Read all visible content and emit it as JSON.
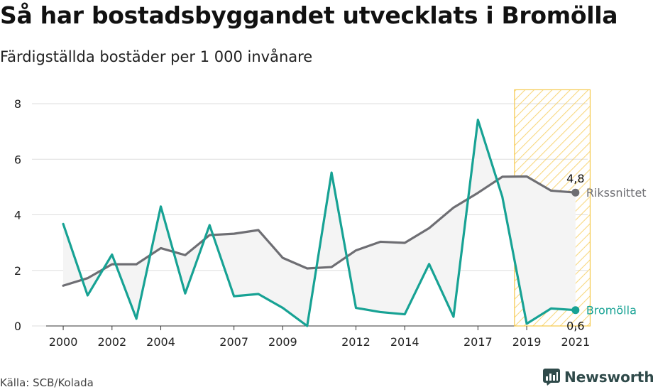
{
  "title": "Så har bostadsbyggandet utvecklats i Bromölla",
  "subtitle": "Färdigställda bostäder per 1 000 invånare",
  "source": "Källa: SCB/Kolada",
  "brand": {
    "name": "Newsworthy",
    "icon": "newsworthy-chart-icon"
  },
  "colors": {
    "local": "#17a294",
    "national": "#6e6e73",
    "highlight": "#f5c84a",
    "band": "#f4f4f4",
    "grid": "#dddddd"
  },
  "chart_data": {
    "type": "line",
    "title": "Så har bostadsbyggandet utvecklats i Bromölla",
    "ylabel": "Färdigställda bostäder per 1 000 invånare",
    "ylim": [
      0,
      8
    ],
    "yticks": [
      0,
      2,
      4,
      6,
      8
    ],
    "xlim": [
      1999.3,
      2021.5
    ],
    "xticks": [
      2000,
      2002,
      2004,
      2007,
      2009,
      2012,
      2014,
      2017,
      2019,
      2021
    ],
    "x": [
      2000,
      2001,
      2002,
      2003,
      2004,
      2005,
      2006,
      2007,
      2008,
      2009,
      2010,
      2011,
      2012,
      2013,
      2014,
      2015,
      2016,
      2017,
      2018,
      2019,
      2020,
      2021
    ],
    "highlight_range": [
      2018.5,
      2021
    ],
    "grid": true,
    "series": [
      {
        "name": "Rikssnittet",
        "values": [
          1.45,
          1.72,
          2.22,
          2.22,
          2.8,
          2.55,
          3.27,
          3.32,
          3.45,
          2.45,
          2.07,
          2.12,
          2.72,
          3.03,
          2.99,
          3.52,
          4.26,
          4.79,
          5.37,
          5.38,
          4.87,
          4.8
        ],
        "end_label": "4,8"
      },
      {
        "name": "Bromölla",
        "values": [
          3.67,
          1.1,
          2.57,
          0.26,
          4.3,
          1.17,
          3.63,
          1.07,
          1.15,
          0.65,
          0.0,
          5.52,
          0.65,
          0.5,
          0.42,
          2.23,
          0.33,
          7.42,
          4.65,
          0.08,
          0.63,
          0.57
        ],
        "end_label": "0,6"
      }
    ]
  }
}
